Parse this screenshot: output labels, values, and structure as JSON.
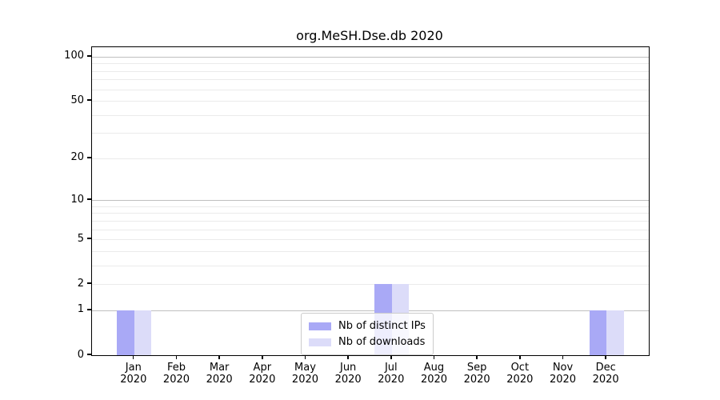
{
  "chart_data": {
    "type": "bar",
    "title": "org.MeSH.Dse.db 2020",
    "categories": [
      "Jan",
      "Feb",
      "Mar",
      "Apr",
      "May",
      "Jun",
      "Jul",
      "Aug",
      "Sep",
      "Oct",
      "Nov",
      "Dec"
    ],
    "category_year": "2020",
    "series": [
      {
        "name": "Nb of distinct IPs",
        "color": "#a9a9f6",
        "values": [
          1,
          0,
          0,
          0,
          0,
          0,
          2,
          0,
          0,
          0,
          0,
          1
        ]
      },
      {
        "name": "Nb of downloads",
        "color": "#dcdcf9",
        "values": [
          1,
          0,
          0,
          0,
          0,
          0,
          2,
          0,
          0,
          0,
          0,
          1
        ]
      }
    ],
    "yscale": "log1p",
    "ylim": [
      0,
      117
    ],
    "yticks": [
      0,
      1,
      2,
      5,
      10,
      20,
      50,
      100
    ],
    "grid_major": [
      1,
      10,
      100
    ],
    "grid_minor": [
      2,
      3,
      4,
      5,
      6,
      7,
      8,
      9,
      20,
      30,
      40,
      50,
      60,
      70,
      80,
      90
    ],
    "grid": "horizontal",
    "legend_position": "lower center"
  }
}
